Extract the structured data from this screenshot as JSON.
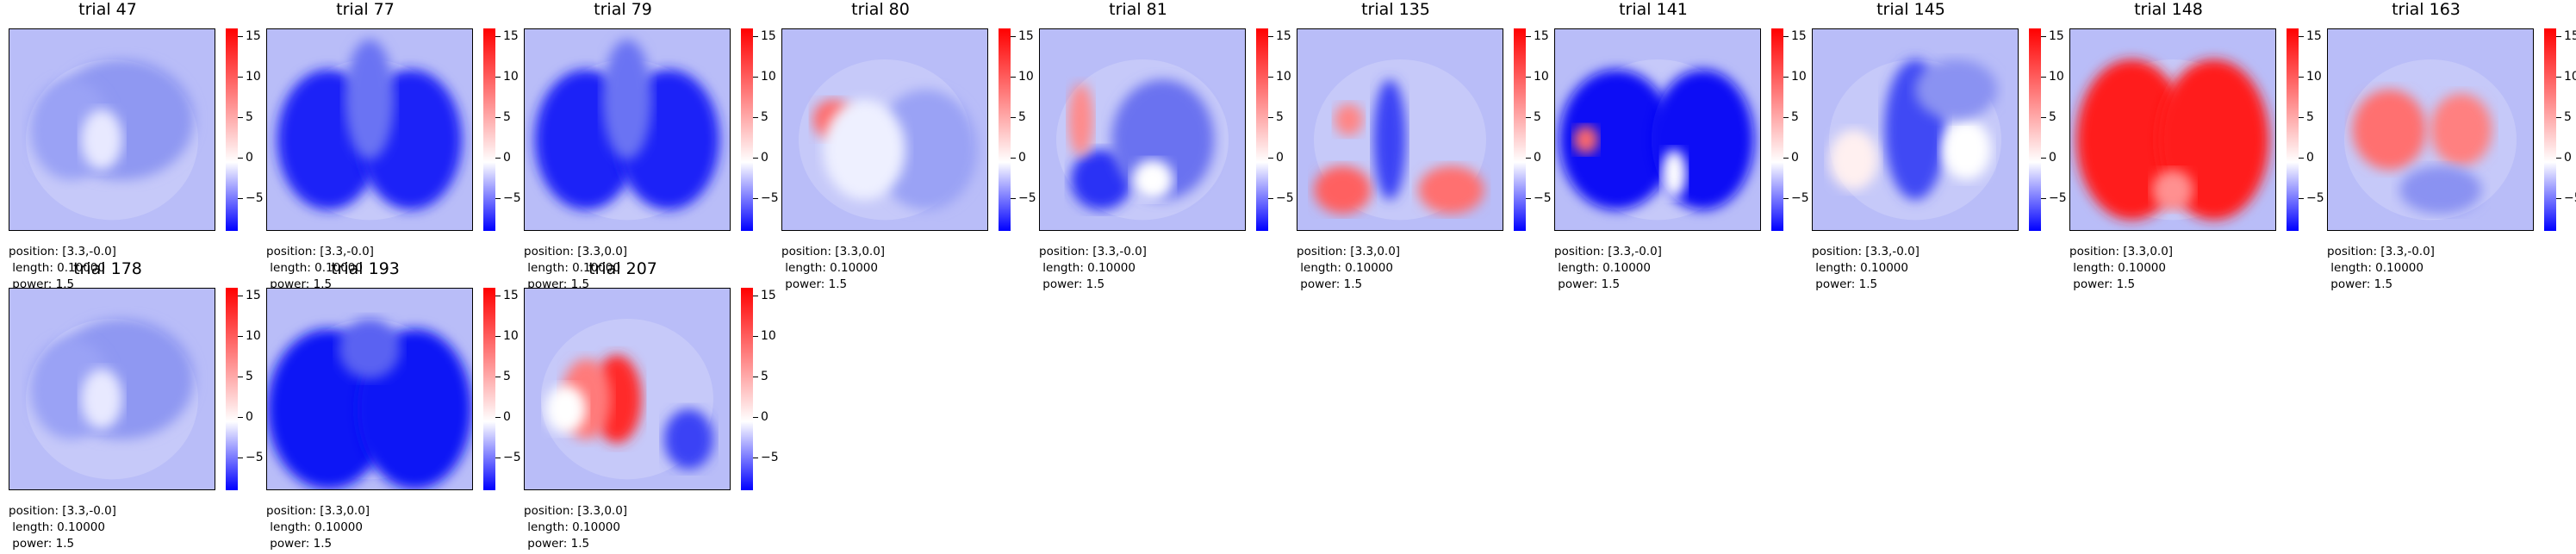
{
  "chart_data": {
    "type": "heatmap",
    "colormap": [
      "#0000ff",
      "#ffffff",
      "#ff0000"
    ],
    "colorbar": {
      "ticks": [
        "15",
        "10",
        "5",
        "0",
        "−5"
      ],
      "range": [
        -9,
        16
      ]
    },
    "panels": [
      {
        "title": "trial 47",
        "pattern": "mild-blue",
        "position": "position: [3.3,-0.0]",
        "length": " length: 0.10000",
        "power": " power: 1.5"
      },
      {
        "title": "trial 77",
        "pattern": "blue",
        "position": "position: [3.3,-0.0]",
        "length": " length: 0.10000",
        "power": " power: 1.5"
      },
      {
        "title": "trial 79",
        "pattern": "blue",
        "position": "position: [3.3,0.0]",
        "length": " length: 0.10000",
        "power": " power: 1.5"
      },
      {
        "title": "trial 80",
        "pattern": "red-spot",
        "position": "position: [3.3,0.0]",
        "length": " length: 0.10000",
        "power": " power: 1.5"
      },
      {
        "title": "trial 81",
        "pattern": "mixed",
        "position": "position: [3.3,-0.0]",
        "length": " length: 0.10000",
        "power": " power: 1.5"
      },
      {
        "title": "trial 135",
        "pattern": "red-lower",
        "position": "position: [3.3,0.0]",
        "length": " length: 0.10000",
        "power": " power: 1.5"
      },
      {
        "title": "trial 141",
        "pattern": "blue-strong",
        "position": "position: [3.3,-0.0]",
        "length": " length: 0.10000",
        "power": " power: 1.5"
      },
      {
        "title": "trial 145",
        "pattern": "mixed-light",
        "position": "position: [3.3,-0.0]",
        "length": " length: 0.10000",
        "power": " power: 1.5"
      },
      {
        "title": "trial 148",
        "pattern": "red-full",
        "position": "position: [3.3,0.0]",
        "length": " length: 0.10000",
        "power": " power: 1.5"
      },
      {
        "title": "trial 163",
        "pattern": "red-mid",
        "position": "position: [3.3,-0.0]",
        "length": " length: 0.10000",
        "power": " power: 1.5"
      },
      {
        "title": "trial 178",
        "pattern": "mild-blue",
        "position": "position: [3.3,-0.0]",
        "length": " length: 0.10000",
        "power": " power: 1.5"
      },
      {
        "title": "trial 193",
        "pattern": "blue-full",
        "position": "position: [3.3,0.0]",
        "length": " length: 0.10000",
        "power": " power: 1.5"
      },
      {
        "title": "trial 207",
        "pattern": "red-center",
        "position": "position: [3.3,0.0]",
        "length": " length: 0.10000",
        "power": " power: 1.5"
      }
    ]
  }
}
